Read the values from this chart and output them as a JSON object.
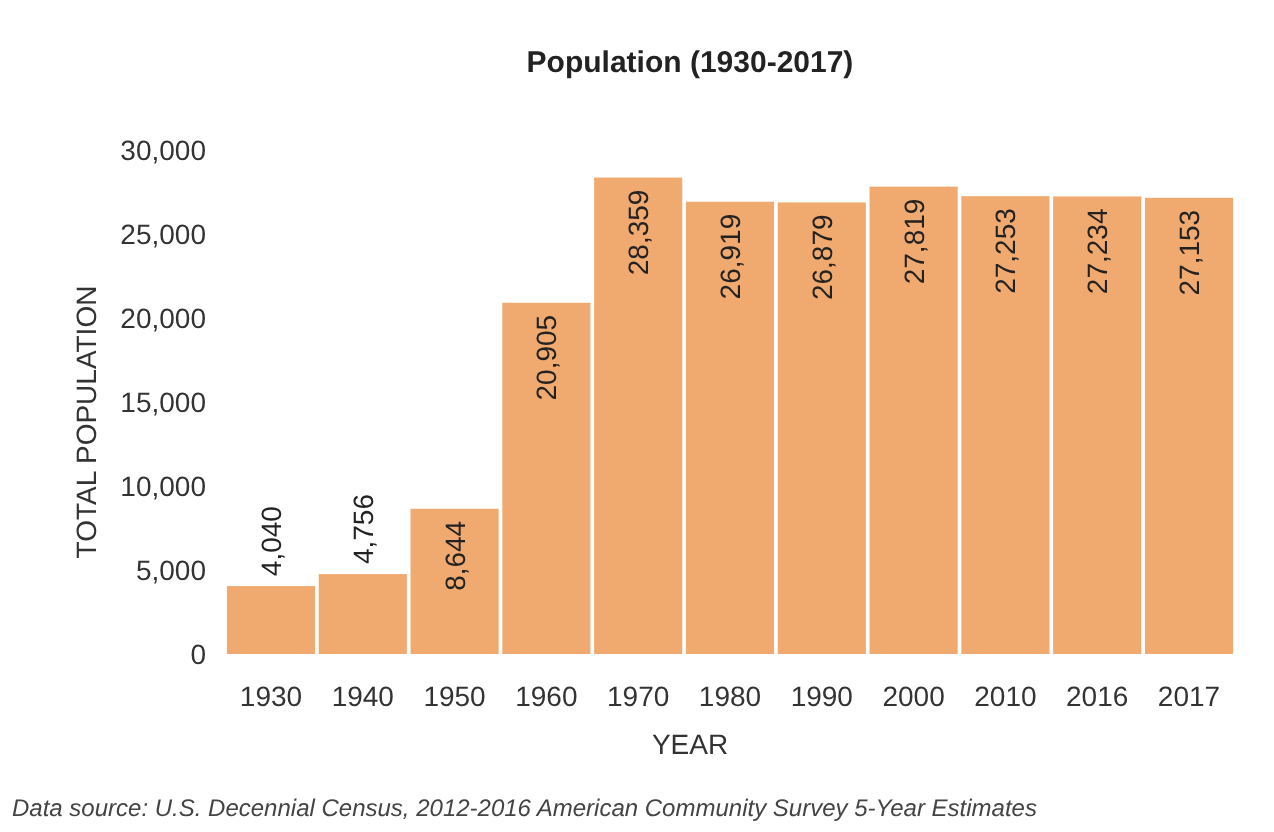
{
  "chart_data": {
    "type": "bar",
    "title": "Population (1930-2017)",
    "xlabel": "YEAR",
    "ylabel": "TOTAL POPULATION",
    "categories": [
      "1930",
      "1940",
      "1950",
      "1960",
      "1970",
      "1980",
      "1990",
      "2000",
      "2010",
      "2016",
      "2017"
    ],
    "values": [
      4040,
      4756,
      8644,
      20905,
      28359,
      26919,
      26879,
      27819,
      27253,
      27234,
      27153
    ],
    "color": "#f0a96e",
    "value_labels": [
      "4,040",
      "4,756",
      "8,644",
      "20,905",
      "28,359",
      "26,919",
      "26,879",
      "27,819",
      "27,253",
      "27,234",
      "27,153"
    ],
    "ylim": [
      0,
      30000
    ],
    "yticks": [
      0,
      {
        "value": 5000,
        "label": "5,000"
      },
      {
        "value": 10000,
        "label": "10,000"
      },
      {
        "value": 15000,
        "label": "15,000"
      },
      {
        "value": 20000,
        "label": "20,000"
      },
      {
        "value": 25000,
        "label": "25,000"
      },
      {
        "value": 30000,
        "label": "30,000"
      }
    ],
    "annotations": [
      "Data source: U.S. Decennial Census, 2012-2016 American Community Survey 5-Year Estimates"
    ]
  }
}
